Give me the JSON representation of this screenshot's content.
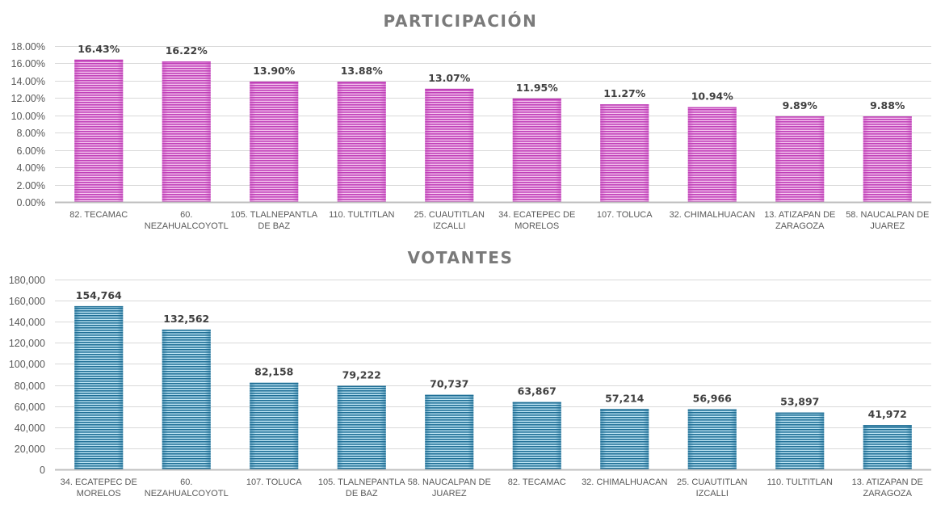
{
  "chart_data": [
    {
      "id": "participacion",
      "type": "bar",
      "title": "PARTICIPACIÓN",
      "xlabel": "",
      "ylabel": "",
      "categories": [
        "82. TECAMAC",
        "60. NEZAHUALCOYOTL",
        "105. TLALNEPANTLA DE BAZ",
        "110. TULTITLAN",
        "25. CUAUTITLAN IZCALLI",
        "34. ECATEPEC DE MORELOS",
        "107. TOLUCA",
        "32. CHIMALHUACAN",
        "13. ATIZAPAN DE ZARAGOZA",
        "58. NAUCALPAN DE JUAREZ"
      ],
      "category_lines": [
        [
          "82. TECAMAC"
        ],
        [
          "60.",
          "NEZAHUALCOYOTL"
        ],
        [
          "105. TLALNEPANTLA",
          "DE BAZ"
        ],
        [
          "110. TULTITLAN"
        ],
        [
          "25. CUAUTITLAN",
          "IZCALLI"
        ],
        [
          "34. ECATEPEC DE",
          "MORELOS"
        ],
        [
          "107. TOLUCA"
        ],
        [
          "32. CHIMALHUACAN"
        ],
        [
          "13. ATIZAPAN DE",
          "ZARAGOZA"
        ],
        [
          "58. NAUCALPAN DE",
          "JUAREZ"
        ]
      ],
      "values": [
        16.43,
        16.22,
        13.9,
        13.88,
        13.07,
        11.95,
        11.27,
        10.94,
        9.89,
        9.88
      ],
      "data_labels": [
        "16.43%",
        "16.22%",
        "13.90%",
        "13.88%",
        "13.07%",
        "11.95%",
        "11.27%",
        "10.94%",
        "9.89%",
        "9.88%"
      ],
      "ylim": [
        0,
        18
      ],
      "yticks": [
        0,
        2,
        4,
        6,
        8,
        10,
        12,
        14,
        16,
        18
      ],
      "ytick_labels": [
        "0.00%",
        "2.00%",
        "4.00%",
        "6.00%",
        "8.00%",
        "10.00%",
        "12.00%",
        "14.00%",
        "16.00%",
        "18.00%"
      ],
      "grid": true,
      "legend": "none",
      "bar_color": "#c040b8",
      "bar_stripe_color": "#f4c4ee"
    },
    {
      "id": "votantes",
      "type": "bar",
      "title": "VOTANTES",
      "xlabel": "",
      "ylabel": "",
      "categories": [
        "34. ECATEPEC DE MORELOS",
        "60. NEZAHUALCOYOTL",
        "107. TOLUCA",
        "105. TLALNEPANTLA DE BAZ",
        "58. NAUCALPAN DE JUAREZ",
        "82. TECAMAC",
        "32. CHIMALHUACAN",
        "25. CUAUTITLAN IZCALLI",
        "110. TULTITLAN",
        "13. ATIZAPAN DE ZARAGOZA"
      ],
      "category_lines": [
        [
          "34. ECATEPEC DE",
          "MORELOS"
        ],
        [
          "60.",
          "NEZAHUALCOYOTL"
        ],
        [
          "107. TOLUCA"
        ],
        [
          "105. TLALNEPANTLA",
          "DE BAZ"
        ],
        [
          "58. NAUCALPAN DE",
          "JUAREZ"
        ],
        [
          "82. TECAMAC"
        ],
        [
          "32. CHIMALHUACAN"
        ],
        [
          "25. CUAUTITLAN",
          "IZCALLI"
        ],
        [
          "110. TULTITLAN"
        ],
        [
          "13. ATIZAPAN DE",
          "ZARAGOZA"
        ]
      ],
      "values": [
        154764,
        132562,
        82158,
        79222,
        70737,
        63867,
        57214,
        56966,
        53897,
        41972
      ],
      "data_labels": [
        "154,764",
        "132,562",
        "82,158",
        "79,222",
        "70,737",
        "63,867",
        "57,214",
        "56,966",
        "53,897",
        "41,972"
      ],
      "ylim": [
        0,
        180000
      ],
      "yticks": [
        0,
        20000,
        40000,
        60000,
        80000,
        100000,
        120000,
        140000,
        160000,
        180000
      ],
      "ytick_labels": [
        "0",
        "20,000",
        "40,000",
        "60,000",
        "80,000",
        "100,000",
        "120,000",
        "140,000",
        "160,000",
        "180,000"
      ],
      "grid": true,
      "legend": "none",
      "bar_color": "#1f6f96",
      "bar_stripe_color": "#bfe6f5"
    }
  ]
}
